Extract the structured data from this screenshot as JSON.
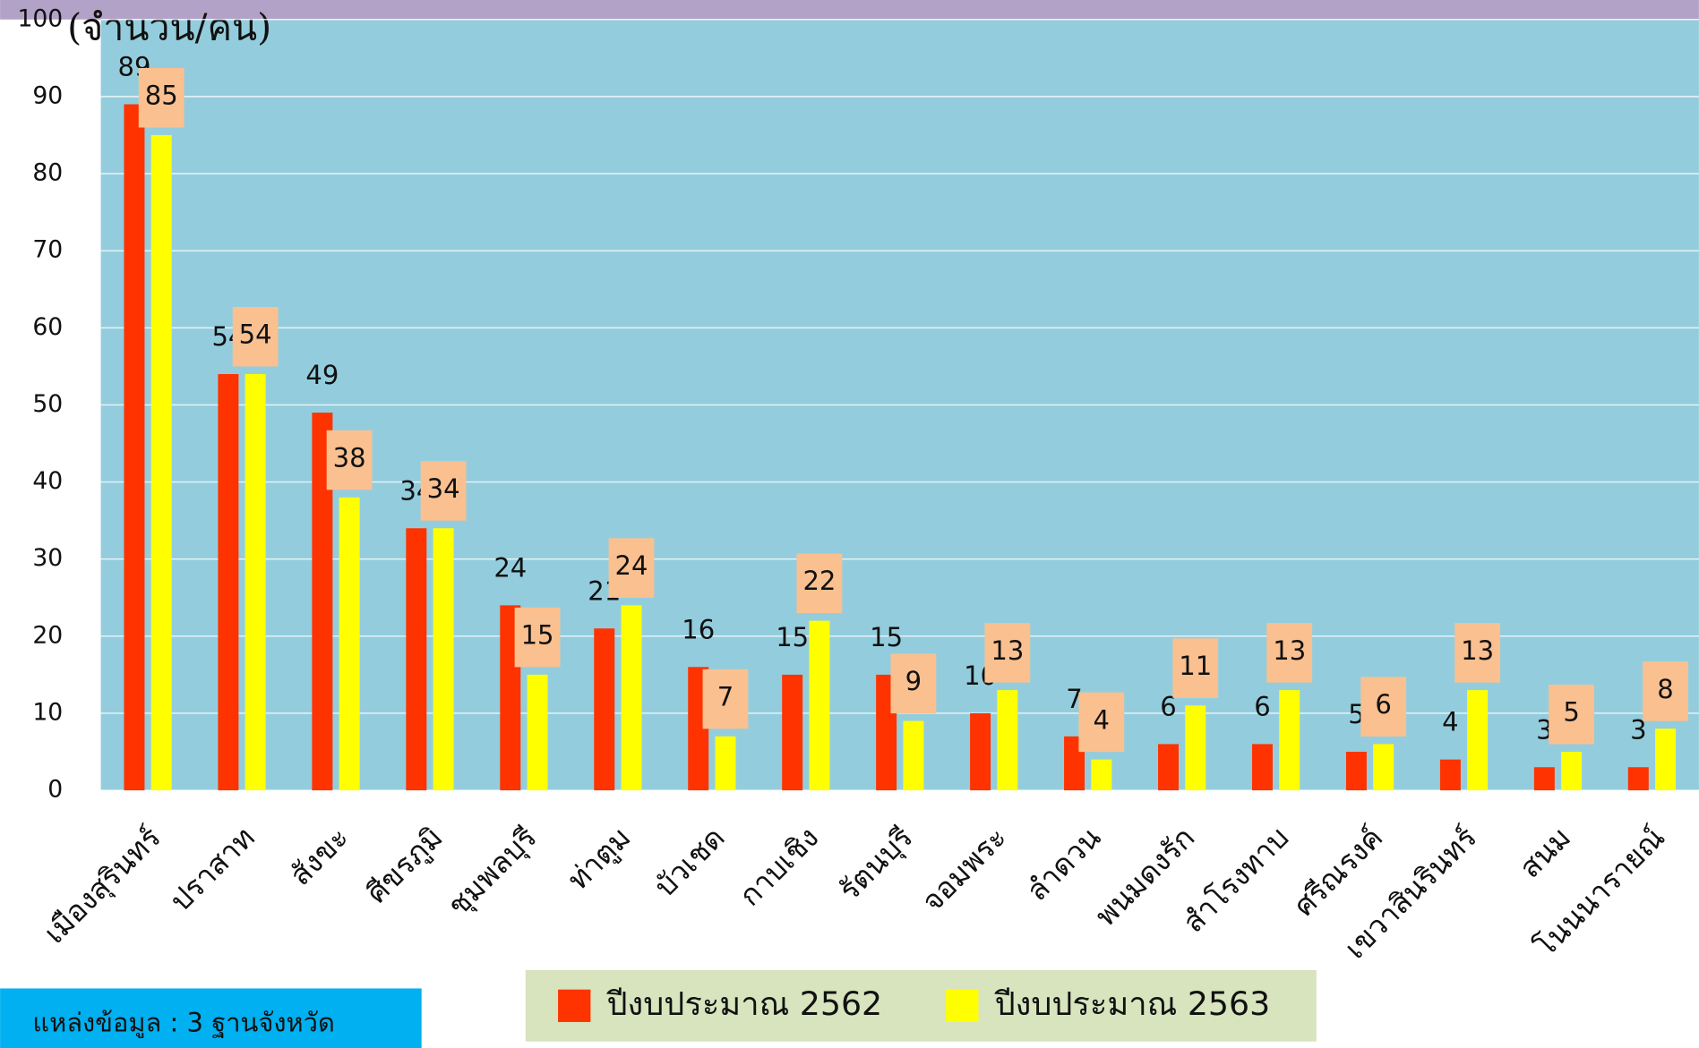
{
  "chart_data": {
    "type": "bar",
    "y_label": "(จำนวน/คน)",
    "categories": [
      "เมืองสุรินทร์",
      "ปราสาท",
      "สังขะ",
      "ศีขรภูมิ",
      "ชุมพลบุรี",
      "ท่าตูม",
      "บัวเชด",
      "กาบเชิง",
      "รัตนบุรี",
      "จอมพระ",
      "ลำดวน",
      "พนมดงรัก",
      "สำโรงทาบ",
      "ศรีณรงค์",
      "เขวาสินรินทร์",
      "สนม",
      "โนนนารายณ์"
    ],
    "series": [
      {
        "name": "ปีงบประมาณ 2562",
        "color": "#ff3300",
        "values": [
          89,
          54,
          49,
          34,
          24,
          21,
          16,
          15,
          15,
          10,
          7,
          6,
          6,
          5,
          4,
          3,
          3
        ]
      },
      {
        "name": "ปีงบประมาณ 2563",
        "color": "#ffff00",
        "values": [
          85,
          54,
          38,
          34,
          15,
          24,
          7,
          22,
          9,
          13,
          4,
          11,
          13,
          6,
          13,
          5,
          8
        ]
      }
    ],
    "ylim": [
      0,
      100
    ],
    "yticks": [
      0,
      10,
      20,
      30,
      40,
      50,
      60,
      70,
      80,
      90,
      100
    ],
    "grid": true,
    "source": "แหล่งข้อมูล : 3 ฐานจังหวัด"
  }
}
